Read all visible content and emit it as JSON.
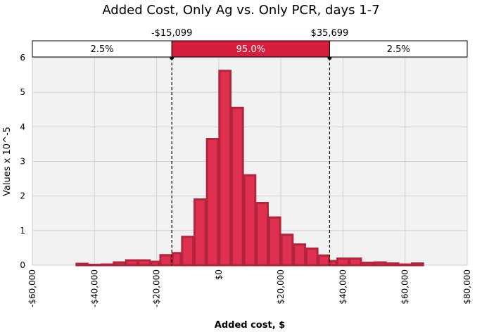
{
  "chart_data": {
    "type": "bar",
    "title": "Added Cost, Only Ag vs. Only PCR, days 1-7",
    "xlabel": "Added cost, $",
    "ylabel": "Values x 10^-5",
    "xlim": [
      -60000,
      80000
    ],
    "ylim": [
      0,
      6
    ],
    "x_ticks": [
      -60000,
      -40000,
      -20000,
      0,
      20000,
      40000,
      60000,
      80000
    ],
    "x_tick_labels": [
      "-$60,000",
      "-$40,000",
      "-$20,000",
      "$0",
      "$20,000",
      "$40,000",
      "$60,000",
      "$80,000"
    ],
    "y_ticks": [
      0,
      1,
      2,
      3,
      4,
      5,
      6
    ],
    "grid": true,
    "bin_width": 4000,
    "bins": [
      {
        "start": -46000,
        "value": 0.04
      },
      {
        "start": -42000,
        "value": 0.01
      },
      {
        "start": -38000,
        "value": 0.02
      },
      {
        "start": -34000,
        "value": 0.08
      },
      {
        "start": -30000,
        "value": 0.14
      },
      {
        "start": -26000,
        "value": 0.14
      },
      {
        "start": -22000,
        "value": 0.1
      },
      {
        "start": -19000,
        "value": 0.29
      },
      {
        "start": -15099,
        "value": 0.35
      },
      {
        "start": -12000,
        "value": 0.82
      },
      {
        "start": -8000,
        "value": 1.9
      },
      {
        "start": -4000,
        "value": 3.65
      },
      {
        "start": 0,
        "value": 5.62
      },
      {
        "start": 4000,
        "value": 4.55
      },
      {
        "start": 8000,
        "value": 2.6
      },
      {
        "start": 12000,
        "value": 1.8
      },
      {
        "start": 16000,
        "value": 1.38
      },
      {
        "start": 20000,
        "value": 0.88
      },
      {
        "start": 24000,
        "value": 0.6
      },
      {
        "start": 28000,
        "value": 0.48
      },
      {
        "start": 32000,
        "value": 0.28
      },
      {
        "start": 35699,
        "value": 0.12
      },
      {
        "start": 38000,
        "value": 0.19
      },
      {
        "start": 42000,
        "value": 0.19
      },
      {
        "start": 46000,
        "value": 0.07
      },
      {
        "start": 50000,
        "value": 0.08
      },
      {
        "start": 54000,
        "value": 0.05
      },
      {
        "start": 58000,
        "value": 0.02
      },
      {
        "start": 62000,
        "value": 0.05
      }
    ],
    "cutoffs": {
      "left_value": -15099,
      "right_value": 35699,
      "left_label": "-$15,099",
      "right_label": "$35,699"
    },
    "bands": {
      "left": "2.5%",
      "middle": "95.0%",
      "right": "2.5%"
    },
    "colors": {
      "bar_fill": "#e0304f",
      "bar_stroke": "#b3243d",
      "band_highlight": "#d81e3e",
      "plot_bg": "#f2f2f2",
      "grid": "#d0d0d0"
    }
  }
}
